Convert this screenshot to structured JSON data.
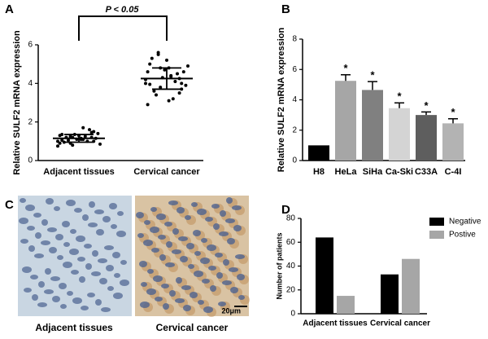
{
  "chart_data": [
    {
      "type": "dot_plot",
      "panel_label": "A",
      "annotation": "P < 0.05",
      "ylabel": "Relative SULF2 mRNA expression",
      "categories": [
        "Adjacent tissues",
        "Cervical cancer"
      ],
      "points": [
        [
          1.0,
          1.2,
          1.1,
          0.9,
          1.3,
          1.5,
          1.7,
          0.8,
          1.05,
          1.15,
          1.25,
          1.35,
          0.95,
          1.4,
          1.0,
          1.1,
          1.2,
          0.85,
          1.6,
          1.3,
          1.05,
          0.75,
          1.45,
          1.15,
          1.25,
          0.9,
          1.0,
          1.1,
          1.2,
          1.35
        ],
        [
          4.2,
          3.5,
          4.8,
          5.6,
          2.9,
          4.0,
          4.4,
          3.8,
          5.0,
          4.6,
          3.2,
          4.3,
          5.3,
          3.9,
          4.1,
          4.7,
          3.6,
          4.9,
          4.5,
          5.2,
          3.4,
          4.0,
          4.25,
          3.1,
          5.5,
          4.6,
          3.7,
          4.35,
          4.8,
          3.95
        ]
      ],
      "mean": [
        1.15,
        4.25
      ],
      "sd": [
        0.2,
        0.55
      ],
      "color": "#000000",
      "ylim": [
        0,
        6
      ],
      "yticks": [
        0,
        2,
        4,
        6
      ]
    },
    {
      "type": "bar",
      "panel_label": "B",
      "ylabel": "Relative SULF2 mRNA expression",
      "categories": [
        "H8",
        "HeLa",
        "SiHa",
        "Ca-Ski",
        "C33A",
        "C-4I"
      ],
      "values": [
        1,
        5.25,
        4.65,
        3.45,
        3.0,
        2.45
      ],
      "errors": [
        0,
        0.4,
        0.55,
        0.35,
        0.2,
        0.3
      ],
      "significance": [
        null,
        "*",
        "*",
        "*",
        "*",
        "*"
      ],
      "colors": [
        "#000000",
        "#a6a6a6",
        "#808080",
        "#d4d4d4",
        "#5e5e5e",
        "#b3b3b3"
      ],
      "ylim": [
        0,
        8
      ],
      "yticks": [
        0,
        2,
        4,
        6,
        8
      ]
    },
    {
      "type": "grouped_bar",
      "panel_label": "D",
      "ylabel": "Number of patients",
      "categories": [
        "Adjacent tissues",
        "Cervical cancer"
      ],
      "series": [
        {
          "name": "Negative",
          "color": "#000000",
          "values": [
            64,
            33
          ]
        },
        {
          "name": "Postive",
          "color": "#a6a6a6",
          "values": [
            15,
            46
          ]
        }
      ],
      "legend": "top-right",
      "ylim": [
        0,
        80
      ],
      "yticks": [
        0,
        20,
        40,
        60,
        80
      ]
    }
  ],
  "image_panel": {
    "panel_label": "C",
    "labels": [
      "Adjacent tissues",
      "Cervical cancer"
    ],
    "scale_bar": "20μm"
  }
}
